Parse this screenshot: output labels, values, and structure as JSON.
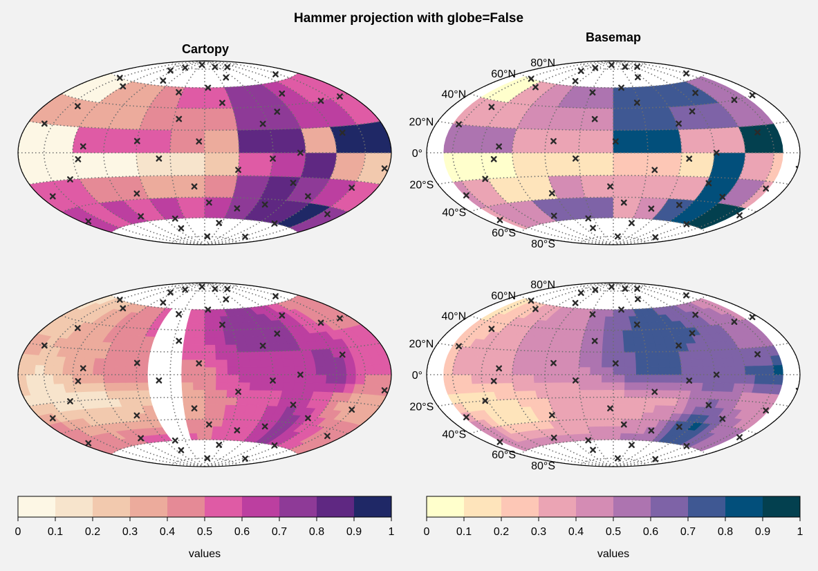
{
  "figure": {
    "title": "Hammer projection with globe=False",
    "col_titles": [
      "Cartopy",
      "Basemap"
    ]
  },
  "chart_data": {
    "type": "heatmap",
    "projection": "hammer",
    "grid": true,
    "lat_tick_labels": [
      "80°N",
      "60°N",
      "40°N",
      "20°N",
      "0°",
      "20°S",
      "40°S",
      "60°S",
      "80°S"
    ],
    "colorbars": [
      {
        "label": "values",
        "ticks": [
          "0",
          "0.1",
          "0.2",
          "0.3",
          "0.4",
          "0.5",
          "0.6",
          "0.7",
          "0.8",
          "0.9",
          "1"
        ],
        "colors": [
          "#fdf7e5",
          "#f7e4cc",
          "#f2c9ae",
          "#ecab9c",
          "#e58a96",
          "#df5ba5",
          "#bc3fa0",
          "#8e3a97",
          "#5f2882",
          "#1f2866"
        ]
      },
      {
        "label": "values",
        "ticks": [
          "0",
          "0.1",
          "0.2",
          "0.3",
          "0.4",
          "0.5",
          "0.6",
          "0.7",
          "0.8",
          "0.9",
          "1"
        ],
        "colors": [
          "#ffffcc",
          "#fee4bb",
          "#fdc7b6",
          "#eba4b4",
          "#d48cb4",
          "#ad74b0",
          "#7e63a7",
          "#3f5893",
          "#024f7b",
          "#03404f"
        ]
      }
    ],
    "panels": [
      {
        "name": "cartopy-top",
        "style": "cells",
        "cmap": 0,
        "lon": [
          -180,
          -150,
          -120,
          -90,
          -60,
          -30,
          0,
          30,
          60,
          90,
          120,
          150,
          180
        ],
        "lat": [
          -80,
          -60,
          -40,
          -20,
          0,
          20,
          40,
          60,
          80
        ],
        "values": [
          [
            0.3,
            0.35,
            0.45,
            0.55,
            0.65,
            0.5,
            0.6,
            0.75,
            0.85,
            0.9,
            0.95,
            0.9
          ],
          [
            0.6,
            0.55,
            0.6,
            0.55,
            0.65,
            0.55,
            0.6,
            0.75,
            0.8,
            0.85,
            0.9,
            0.75
          ],
          [
            0.55,
            0.5,
            0.45,
            0.45,
            0.35,
            0.35,
            0.45,
            0.75,
            0.8,
            0.75,
            0.65,
            0.5
          ],
          [
            0.05,
            0.05,
            0.05,
            0.05,
            0.15,
            0.15,
            0.25,
            0.55,
            0.65,
            0.8,
            0.3,
            0.2
          ],
          [
            0.05,
            0.05,
            0.55,
            0.55,
            0.5,
            0.45,
            0.35,
            0.85,
            0.8,
            0.35,
            0.95,
            0.95
          ],
          [
            0.35,
            0.35,
            0.35,
            0.35,
            0.45,
            0.45,
            0.45,
            0.75,
            0.7,
            0.65,
            0.6,
            0.5
          ],
          [
            0.05,
            0.05,
            0.35,
            0.35,
            0.45,
            0.55,
            0.55,
            0.75,
            0.75,
            0.65,
            0.55,
            0.5
          ],
          [
            0.05,
            0.05,
            0.05,
            0.35,
            0.45,
            0.55,
            0.55,
            0.7,
            0.7,
            0.9,
            0.95,
            0.95
          ]
        ]
      },
      {
        "name": "basemap-top",
        "style": "cells",
        "cmap": 1,
        "xlim": [
          -160,
          160
        ],
        "lon": [
          -180,
          -150,
          -120,
          -90,
          -60,
          -30,
          0,
          30,
          60,
          90,
          120,
          150,
          180
        ],
        "lat": [
          -80,
          -60,
          -40,
          -20,
          0,
          20,
          40,
          60,
          80
        ],
        "values": [
          [
            0.3,
            0.4,
            0.45,
            0.55,
            0.65,
            0.65,
            0.5,
            0.55,
            0.75,
            0.85,
            0.95,
            0.95
          ],
          [
            0.35,
            0.4,
            0.4,
            0.6,
            0.65,
            0.6,
            0.35,
            0.45,
            0.75,
            0.85,
            0.95,
            0.95
          ],
          [
            0.4,
            0.35,
            0.1,
            0.1,
            0.45,
            0.35,
            0.35,
            0.35,
            0.35,
            0.85,
            0.55,
            0.35
          ],
          [
            0.05,
            0.05,
            0.05,
            0.15,
            0.15,
            0.15,
            0.25,
            0.25,
            0.15,
            0.85,
            0.35,
            0.25
          ],
          [
            0.55,
            0.55,
            0.55,
            0.35,
            0.35,
            0.35,
            0.85,
            0.85,
            0.35,
            0.35,
            0.95,
            0.95
          ],
          [
            0.35,
            0.35,
            0.35,
            0.45,
            0.45,
            0.45,
            0.75,
            0.75,
            0.65,
            0.6,
            0.55,
            0.55
          ],
          [
            0.05,
            0.05,
            0.35,
            0.45,
            0.5,
            0.55,
            0.75,
            0.75,
            0.75,
            0.7,
            0.55,
            0.5
          ],
          [
            0.05,
            0.05,
            0.05,
            0.45,
            0.5,
            0.55,
            0.75,
            0.75,
            0.75,
            0.95,
            0.95,
            0.95
          ]
        ]
      },
      {
        "name": "cartopy-bottom",
        "style": "smooth",
        "cmap": 0,
        "blank_band": [
          -50,
          -15
        ],
        "lon": [
          -180,
          -150,
          -120,
          -90,
          -60,
          -30,
          0,
          30,
          60,
          90,
          120,
          150,
          180
        ],
        "lat": [
          -80,
          -60,
          -40,
          -20,
          0,
          20,
          40,
          60,
          80
        ],
        "values": [
          [
            0.3,
            0.35,
            0.45,
            0.55,
            0.6,
            0.55,
            0.55,
            0.65,
            0.7,
            0.7,
            0.65,
            0.55
          ],
          [
            0.45,
            0.45,
            0.5,
            0.55,
            0.6,
            0.55,
            0.5,
            0.55,
            0.6,
            0.75,
            0.6,
            0.5
          ],
          [
            0.5,
            0.4,
            0.3,
            0.25,
            0.35,
            0.35,
            0.4,
            0.55,
            0.6,
            0.8,
            0.55,
            0.45
          ],
          [
            0.2,
            0.15,
            0.15,
            0.15,
            0.25,
            0.3,
            0.4,
            0.5,
            0.55,
            0.65,
            0.45,
            0.3
          ],
          [
            0.25,
            0.15,
            0.35,
            0.45,
            0.45,
            0.45,
            0.45,
            0.65,
            0.7,
            0.6,
            0.85,
            0.5
          ],
          [
            0.35,
            0.3,
            0.35,
            0.4,
            0.45,
            0.5,
            0.55,
            0.7,
            0.7,
            0.7,
            0.7,
            0.55
          ],
          [
            0.2,
            0.25,
            0.35,
            0.45,
            0.5,
            0.55,
            0.6,
            0.75,
            0.75,
            0.7,
            0.55,
            0.45
          ],
          [
            0.15,
            0.2,
            0.3,
            0.4,
            0.5,
            0.55,
            0.6,
            0.7,
            0.7,
            0.65,
            0.5,
            0.4
          ]
        ]
      },
      {
        "name": "basemap-bottom",
        "style": "smooth",
        "cmap": 1,
        "xlim": [
          -160,
          160
        ],
        "lon": [
          -180,
          -150,
          -120,
          -90,
          -60,
          -30,
          0,
          30,
          60,
          90,
          120,
          150,
          180
        ],
        "lat": [
          -80,
          -60,
          -40,
          -20,
          0,
          20,
          40,
          60,
          80
        ],
        "values": [
          [
            0.3,
            0.35,
            0.45,
            0.55,
            0.6,
            0.55,
            0.55,
            0.6,
            0.65,
            0.7,
            0.7,
            0.6
          ],
          [
            0.45,
            0.5,
            0.5,
            0.5,
            0.45,
            0.45,
            0.5,
            0.55,
            0.6,
            0.8,
            0.65,
            0.55
          ],
          [
            0.55,
            0.45,
            0.15,
            0.15,
            0.3,
            0.35,
            0.35,
            0.4,
            0.55,
            0.85,
            0.6,
            0.5
          ],
          [
            0.2,
            0.15,
            0.15,
            0.2,
            0.3,
            0.35,
            0.35,
            0.35,
            0.35,
            0.6,
            0.45,
            0.4
          ],
          [
            0.25,
            0.3,
            0.35,
            0.4,
            0.45,
            0.45,
            0.6,
            0.75,
            0.7,
            0.65,
            0.7,
            0.85
          ],
          [
            0.25,
            0.3,
            0.35,
            0.4,
            0.45,
            0.5,
            0.65,
            0.75,
            0.7,
            0.65,
            0.6,
            0.55
          ],
          [
            0.15,
            0.2,
            0.3,
            0.4,
            0.45,
            0.5,
            0.65,
            0.75,
            0.75,
            0.7,
            0.6,
            0.5
          ],
          [
            0.15,
            0.15,
            0.25,
            0.35,
            0.45,
            0.5,
            0.6,
            0.7,
            0.7,
            0.6,
            0.5,
            0.4
          ]
        ]
      }
    ],
    "markers": [
      [
        -160,
        20
      ],
      [
        -140,
        35
      ],
      [
        -120,
        55
      ],
      [
        -100,
        75
      ],
      [
        -80,
        80
      ],
      [
        -60,
        10
      ],
      [
        -40,
        -5
      ],
      [
        -25,
        30
      ],
      [
        -10,
        -30
      ],
      [
        5,
        60
      ],
      [
        20,
        45
      ],
      [
        30,
        -15
      ],
      [
        45,
        70
      ],
      [
        55,
        25
      ],
      [
        70,
        -45
      ],
      [
        85,
        0
      ],
      [
        100,
        50
      ],
      [
        115,
        -60
      ],
      [
        130,
        15
      ],
      [
        150,
        -25
      ],
      [
        165,
        40
      ],
      [
        -170,
        -50
      ],
      [
        -130,
        -20
      ],
      [
        -90,
        -55
      ],
      [
        -50,
        -70
      ],
      [
        -20,
        85
      ],
      [
        10,
        -80
      ],
      [
        40,
        -50
      ],
      [
        75,
        35
      ],
      [
        110,
        -35
      ],
      [
        145,
        65
      ],
      [
        175,
        -10
      ],
      [
        -150,
        60
      ],
      [
        -110,
        5
      ],
      [
        -70,
        -35
      ],
      [
        -5,
        10
      ],
      [
        25,
        -65
      ],
      [
        60,
        -5
      ],
      [
        95,
        80
      ],
      [
        125,
        -75
      ],
      [
        160,
        -45
      ],
      [
        -35,
        55
      ],
      [
        50,
        82
      ],
      [
        -75,
        65
      ],
      [
        135,
        40
      ],
      [
        -45,
        -60
      ],
      [
        5,
        -45
      ],
      [
        -115,
        -5
      ],
      [
        85,
        -25
      ],
      [
        -165,
        -30
      ]
    ]
  }
}
